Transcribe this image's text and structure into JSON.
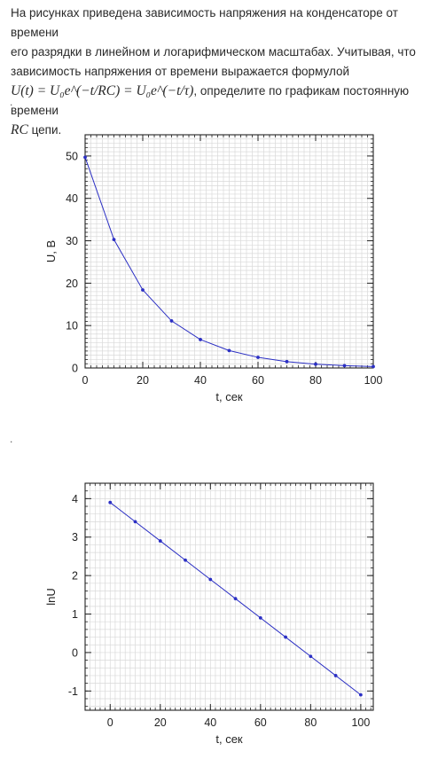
{
  "problem": {
    "line1": "На рисунках приведена зависимость напряжения на конденсаторе от времени",
    "line2": "его разрядки в линейном и логарифмическом масштабах. Учитывая, что",
    "line3": "зависимость напряжения от времени выражается формулой",
    "formula": "U(t) = U₀e^(−t/RC) = U₀e^(−t/τ)",
    "line4_after_formula": ", определите по графикам постоянную времени",
    "rc_symbol": "RC",
    "line5_after_rc": " цепи."
  },
  "separators": {
    "dot1": ".",
    "dot2": "."
  },
  "chart_data": [
    {
      "type": "line",
      "xlabel": "t, сек",
      "ylabel": "U, В",
      "xlim": [
        0,
        100
      ],
      "ylim": [
        0,
        55
      ],
      "xticks": [
        0,
        20,
        40,
        60,
        80,
        100
      ],
      "yticks": [
        0,
        10,
        20,
        30,
        40,
        50
      ],
      "grid": true,
      "color": "#2b2fc4",
      "series": [
        {
          "x": [
            0,
            10,
            20,
            30,
            40,
            50,
            60,
            70,
            80,
            90,
            100
          ],
          "values": [
            49.7,
            30.3,
            18.4,
            11.1,
            6.7,
            4.1,
            2.5,
            1.5,
            0.9,
            0.55,
            0.33
          ]
        }
      ]
    },
    {
      "type": "line",
      "xlabel": "t, сек",
      "ylabel": "lnU",
      "xlim": [
        -10,
        105
      ],
      "ylim": [
        -1.5,
        4.4
      ],
      "xticks": [
        0,
        20,
        40,
        60,
        80,
        100
      ],
      "yticks": [
        -1,
        0,
        1,
        2,
        3,
        4
      ],
      "grid": true,
      "color": "#2b2fc4",
      "series": [
        {
          "x": [
            0,
            10,
            20,
            30,
            40,
            50,
            60,
            70,
            80,
            90,
            100
          ],
          "values": [
            3.9,
            3.4,
            2.9,
            2.4,
            1.9,
            1.4,
            0.9,
            0.4,
            -0.1,
            -0.6,
            -1.1
          ]
        }
      ]
    }
  ]
}
